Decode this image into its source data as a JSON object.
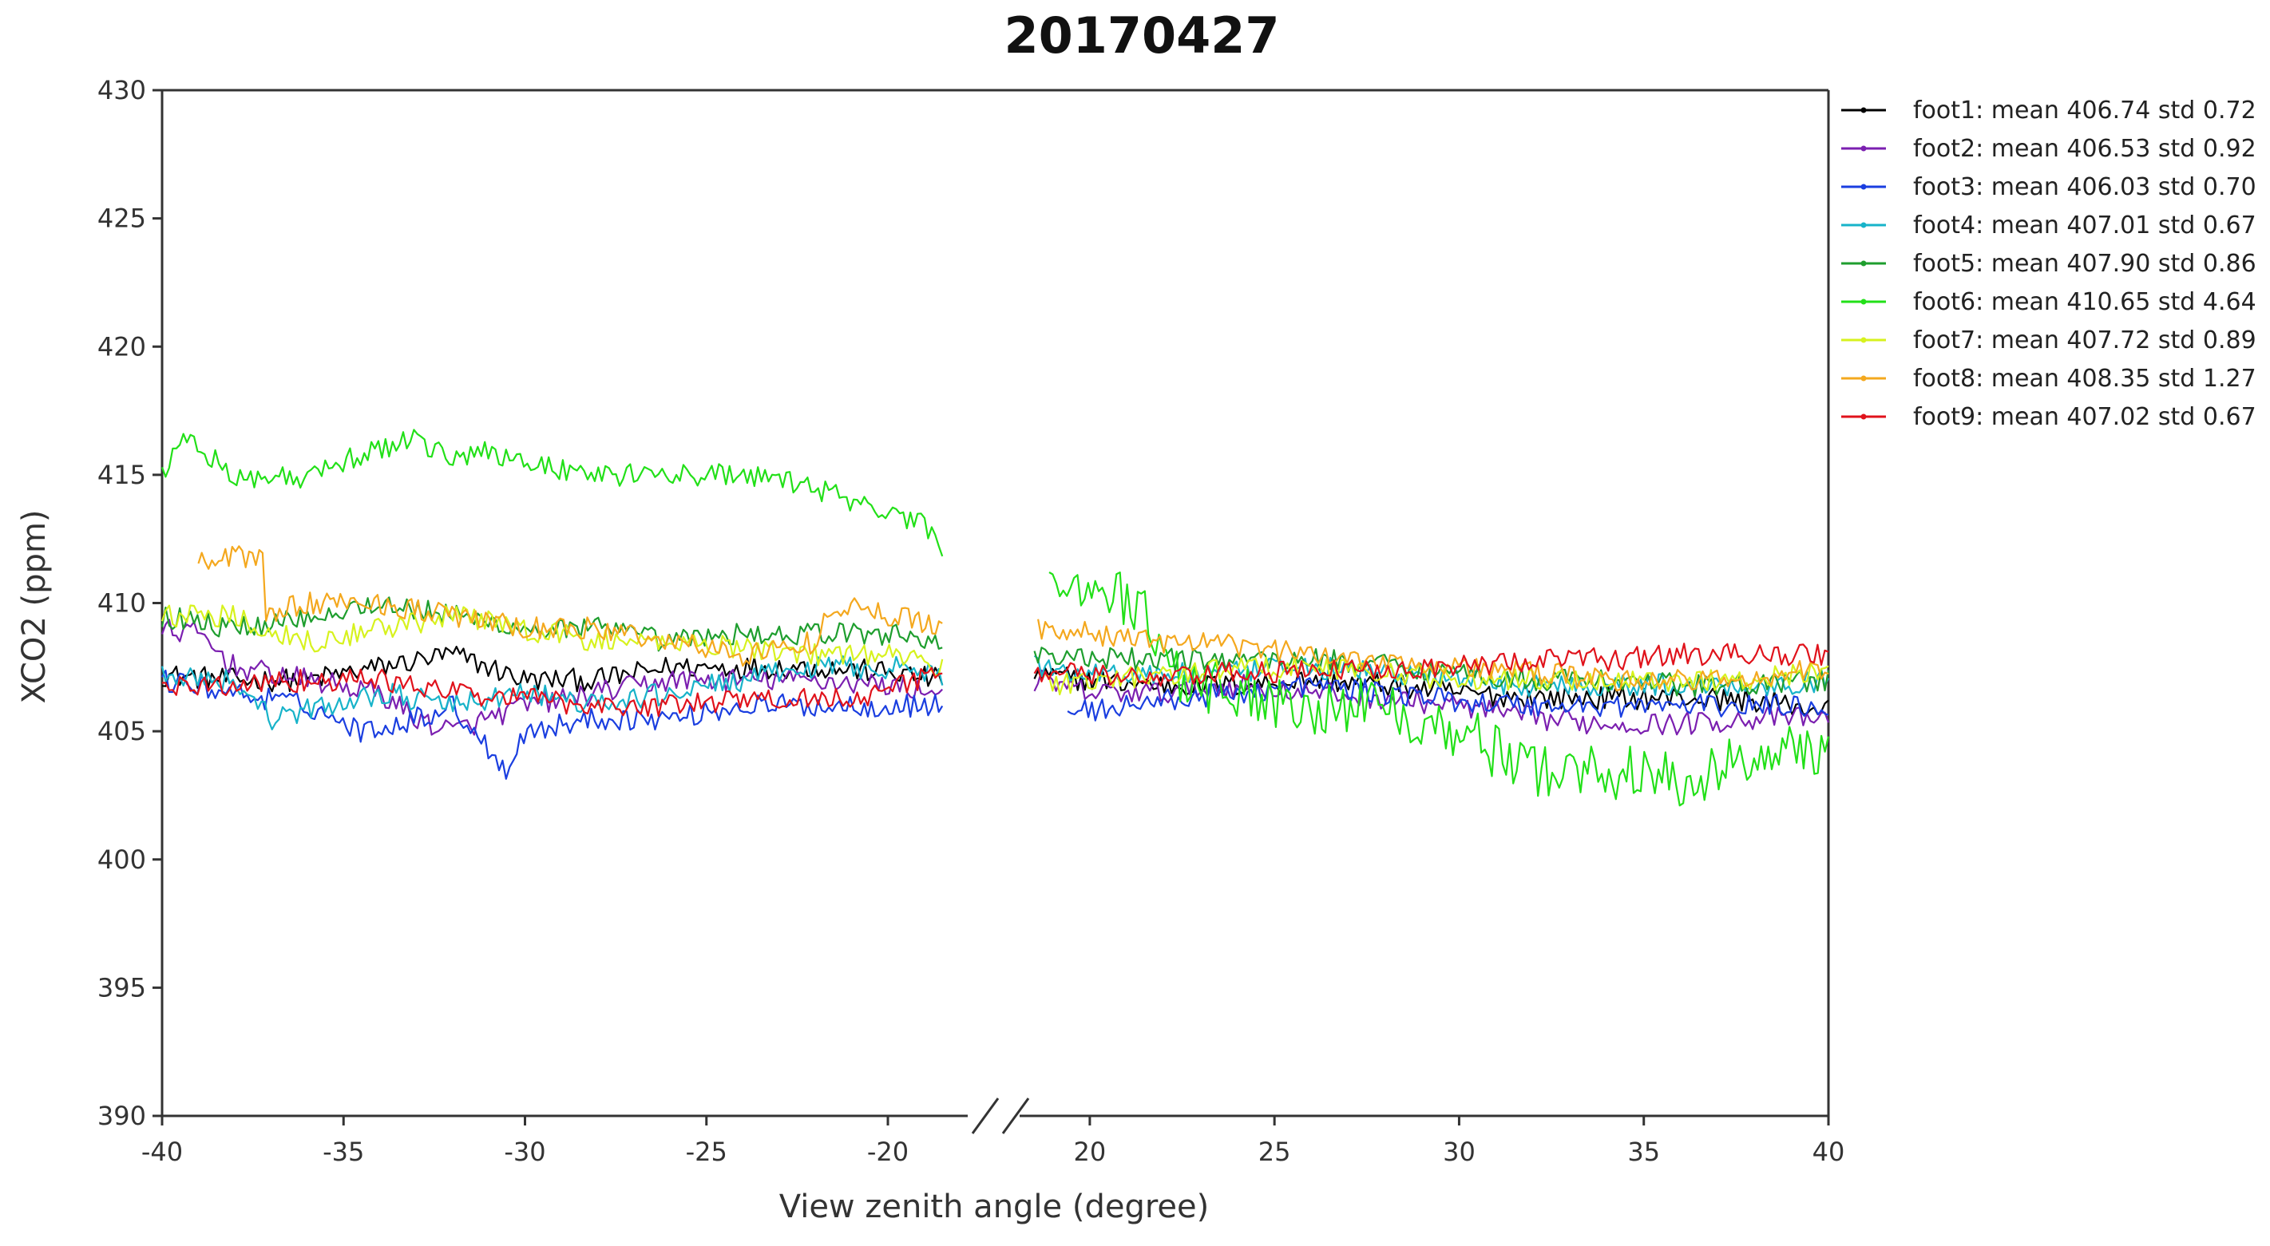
{
  "chart_data": {
    "type": "line",
    "title": "20170427",
    "xlabel": "View zenith angle (degree)",
    "ylabel": "XCO2 (ppm)",
    "ylim": [
      390,
      430
    ],
    "yticks": [
      390,
      395,
      400,
      405,
      410,
      415,
      420,
      425,
      430
    ],
    "x_axis_break": true,
    "x_segments": [
      {
        "xlim": [
          -40,
          -17.8
        ],
        "ticks": [
          -40,
          -35,
          -30,
          -25,
          -20
        ]
      },
      {
        "xlim": [
          18.1,
          40
        ],
        "ticks": [
          20,
          25,
          30,
          35,
          40
        ]
      }
    ],
    "grid": false,
    "legend_position": "top-right, outside plot",
    "series": [
      {
        "name": "foot1: mean 406.74 std 0.72",
        "color": "#000000",
        "left": {
          "x": [
            -40,
            -38,
            -36,
            -34,
            -32,
            -30,
            -28,
            -26,
            -24,
            -22,
            -20,
            -18.5
          ],
          "y": [
            407.2,
            407.0,
            407.0,
            407.5,
            408.0,
            407.0,
            407.0,
            407.5,
            407.5,
            407.5,
            407.3,
            407.0
          ]
        },
        "right": {
          "x": [
            18.5,
            20,
            22,
            24,
            26,
            28,
            30,
            32,
            34,
            36,
            38,
            40
          ],
          "y": [
            407.2,
            407.0,
            406.8,
            406.8,
            407.0,
            406.8,
            406.5,
            406.3,
            406.3,
            406.3,
            406.2,
            405.8
          ]
        }
      },
      {
        "name": "foot2: mean 406.53 std 0.92",
        "color": "#7b1fb0",
        "left": {
          "x": [
            -40,
            -39,
            -38,
            -36,
            -34,
            -33,
            -32,
            -30,
            -28,
            -26,
            -24,
            -22,
            -20,
            -18.5
          ],
          "y": [
            409.0,
            408.8,
            407.5,
            407.0,
            406.5,
            405.5,
            405.0,
            406.0,
            406.5,
            407.0,
            407.0,
            407.0,
            406.8,
            406.5
          ]
        },
        "right": {
          "x": [
            18.5,
            20,
            22,
            24,
            26,
            28,
            30,
            32,
            34,
            36,
            38,
            40
          ],
          "y": [
            407.0,
            406.5,
            406.5,
            406.8,
            406.5,
            406.3,
            406.0,
            405.5,
            405.3,
            405.3,
            405.5,
            405.5
          ]
        }
      },
      {
        "name": "foot3: mean 406.03 std 0.70",
        "color": "#1a3ee0",
        "left": {
          "x": [
            -40,
            -38,
            -36,
            -34.5,
            -33,
            -32,
            -30.5,
            -30,
            -28,
            -26,
            -24,
            -22,
            -20,
            -18.5
          ],
          "y": [
            407.0,
            406.5,
            406.0,
            405.0,
            405.5,
            406.0,
            403.5,
            405.0,
            405.5,
            405.5,
            406.0,
            406.0,
            406.0,
            406.0
          ]
        },
        "right": {
          "x": [
            19.4,
            20,
            22,
            24,
            26,
            28,
            30,
            32,
            34,
            36,
            38,
            40
          ],
          "y": [
            405.8,
            405.8,
            406.2,
            406.5,
            406.8,
            406.5,
            406.2,
            406.0,
            406.0,
            406.0,
            406.0,
            406.0
          ]
        }
      },
      {
        "name": "foot4: mean 407.01 std 0.67",
        "color": "#17b3c9",
        "left": {
          "x": [
            -40,
            -38,
            -37,
            -36,
            -34,
            -32,
            -30,
            -28,
            -26,
            -24,
            -22,
            -20,
            -18.5
          ],
          "y": [
            407.2,
            407.0,
            405.5,
            405.8,
            406.5,
            406.0,
            406.5,
            406.0,
            406.5,
            407.0,
            407.5,
            407.5,
            407.2
          ]
        },
        "right": {
          "x": [
            18.5,
            20,
            22,
            24,
            26,
            28,
            30,
            32,
            34,
            36,
            38,
            40
          ],
          "y": [
            407.5,
            407.3,
            407.2,
            407.3,
            407.5,
            407.3,
            407.0,
            406.8,
            406.8,
            406.8,
            406.8,
            407.0
          ]
        }
      },
      {
        "name": "foot5: mean 407.90 std 0.86",
        "color": "#1e9e2e",
        "left": {
          "x": [
            -40,
            -38,
            -36,
            -34,
            -32,
            -30,
            -28,
            -26,
            -24,
            -22,
            -20,
            -18.5
          ],
          "y": [
            409.5,
            409.0,
            409.5,
            410.0,
            409.5,
            409.0,
            409.0,
            408.5,
            408.8,
            408.8,
            408.8,
            408.5
          ]
        },
        "right": {
          "x": [
            18.5,
            20,
            22,
            24,
            26,
            28,
            30,
            32,
            34,
            36,
            38,
            40
          ],
          "y": [
            408.0,
            407.8,
            407.8,
            407.8,
            407.8,
            407.6,
            407.3,
            407.0,
            407.0,
            406.8,
            406.8,
            407.0
          ]
        }
      },
      {
        "name": "foot6: mean 410.65 std 4.64",
        "color": "#22e018",
        "left": {
          "x": [
            -40,
            -39.5,
            -38,
            -36,
            -35,
            -34,
            -33,
            -32,
            -31,
            -30,
            -28,
            -26,
            -24,
            -22,
            -20,
            -19,
            -18.5
          ],
          "y": [
            415.0,
            416.5,
            415.0,
            414.8,
            415.5,
            416.0,
            416.5,
            415.5,
            416.0,
            415.5,
            415.0,
            415.0,
            415.0,
            414.5,
            413.5,
            413.0,
            412.0
          ]
        },
        "right": {
          "x": [
            18.9,
            19.5,
            20.5,
            21.5,
            22.5,
            24,
            26,
            28,
            30,
            32,
            34,
            36,
            38,
            40
          ],
          "y": [
            411.5,
            410.8,
            410.5,
            409.5,
            407.0,
            406.5,
            406.0,
            406.0,
            405.0,
            403.5,
            403.5,
            403.0,
            404.0,
            404.5
          ]
        }
      },
      {
        "name": "foot7: mean 407.72 std 0.89",
        "color": "#d7f21e",
        "left": {
          "x": [
            -40,
            -38,
            -36,
            -34,
            -32,
            -30,
            -28,
            -26,
            -24,
            -22,
            -20,
            -18.5
          ],
          "y": [
            409.5,
            409.5,
            408.5,
            409.0,
            409.5,
            409.0,
            408.5,
            408.5,
            408.3,
            408.0,
            408.0,
            407.5
          ]
        },
        "right": {
          "x": [
            18.8,
            20,
            22,
            24,
            26,
            28,
            30,
            32,
            34,
            36,
            38,
            40
          ],
          "y": [
            406.8,
            407.0,
            407.2,
            407.5,
            407.5,
            407.3,
            407.0,
            407.0,
            407.0,
            407.0,
            407.0,
            407.5
          ]
        }
      },
      {
        "name": "foot8: mean 408.35 std 1.27",
        "color": "#f4a81e",
        "left": {
          "x": [
            -39,
            -38,
            -37.2,
            -37.2,
            -36,
            -34,
            -32,
            -30,
            -28,
            -26,
            -24,
            -22,
            -21.5,
            -20,
            -18.5
          ],
          "y": [
            411.5,
            411.8,
            411.8,
            409.5,
            410.0,
            410.0,
            409.5,
            409.0,
            409.0,
            408.5,
            408.0,
            408.5,
            410.0,
            409.5,
            409.2
          ]
        },
        "right": {
          "x": [
            18.6,
            20,
            22,
            24,
            26,
            28,
            30,
            32,
            34,
            36,
            38,
            40
          ],
          "y": [
            409.0,
            408.8,
            408.5,
            408.3,
            408.0,
            407.8,
            407.5,
            407.3,
            407.0,
            407.0,
            407.0,
            407.5
          ]
        }
      },
      {
        "name": "foot9: mean 407.02 std 0.67",
        "color": "#e0121b",
        "left": {
          "x": [
            -40,
            -38,
            -36,
            -34,
            -32,
            -30,
            -28,
            -26,
            -24,
            -22,
            -20,
            -18.5
          ],
          "y": [
            406.7,
            406.8,
            407.0,
            407.0,
            406.5,
            406.3,
            406.0,
            406.0,
            406.2,
            406.3,
            406.5,
            407.5
          ]
        },
        "right": {
          "x": [
            18.5,
            20,
            22,
            24,
            26,
            28,
            30,
            32,
            34,
            36,
            38,
            40
          ],
          "y": [
            407.3,
            407.2,
            407.0,
            407.3,
            407.3,
            407.5,
            407.5,
            407.8,
            407.8,
            408.0,
            408.0,
            408.0
          ]
        }
      }
    ]
  }
}
